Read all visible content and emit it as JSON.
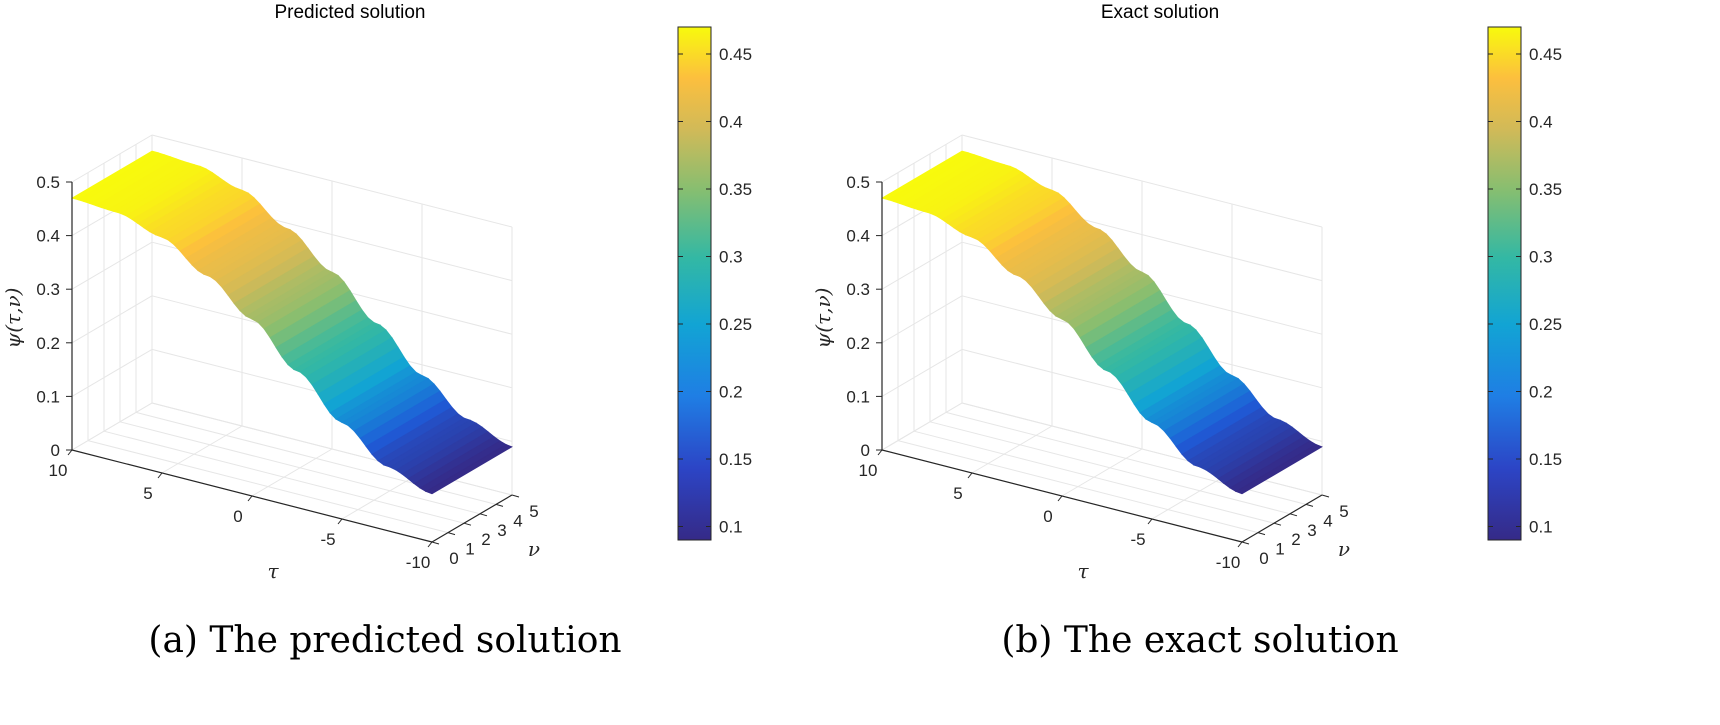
{
  "chart_data": [
    {
      "type": "surface",
      "title": "Predicted solution",
      "caption": "(a) The predicted solution",
      "xlabel": "τ",
      "ylabel": "ν",
      "zlabel": "ψ(τ,ν)",
      "xlim": [
        -10,
        10
      ],
      "ylim": [
        0,
        5
      ],
      "zlim": [
        0,
        0.5
      ],
      "x_ticks": [
        "10",
        "5",
        "0",
        "-5",
        "-10"
      ],
      "y_ticks": [
        "0",
        "1",
        "2",
        "3",
        "4",
        "5"
      ],
      "z_ticks": [
        "0",
        "0.1",
        "0.2",
        "0.3",
        "0.4",
        "0.5"
      ],
      "colorbar": {
        "range": [
          0.09,
          0.47
        ],
        "ticks": [
          "0.1",
          "0.15",
          "0.2",
          "0.25",
          "0.3",
          "0.35",
          "0.4",
          "0.45"
        ],
        "colormap": "parula"
      },
      "grid": true,
      "surface": {
        "description_of_shape": "values vary along τ only",
        "tau": [
          10,
          7.5,
          5,
          2.5,
          0,
          -2.5,
          -5,
          -7.5,
          -10
        ],
        "psi": [
          0.47,
          0.465,
          0.44,
          0.39,
          0.33,
          0.255,
          0.18,
          0.12,
          0.09
        ]
      }
    },
    {
      "type": "surface",
      "title": "Exact solution",
      "caption": "(b) The exact solution",
      "xlabel": "τ",
      "ylabel": "ν",
      "zlabel": "ψ(τ,ν)",
      "xlim": [
        -10,
        10
      ],
      "ylim": [
        0,
        5
      ],
      "zlim": [
        0,
        0.5
      ],
      "x_ticks": [
        "10",
        "5",
        "0",
        "-5",
        "-10"
      ],
      "y_ticks": [
        "0",
        "1",
        "2",
        "3",
        "4",
        "5"
      ],
      "z_ticks": [
        "0",
        "0.1",
        "0.2",
        "0.3",
        "0.4",
        "0.5"
      ],
      "colorbar": {
        "range": [
          0.09,
          0.47
        ],
        "ticks": [
          "0.1",
          "0.15",
          "0.2",
          "0.25",
          "0.3",
          "0.35",
          "0.4",
          "0.45"
        ],
        "colormap": "parula"
      },
      "grid": true,
      "surface": {
        "description_of_shape": "values vary along τ only",
        "tau": [
          10,
          7.5,
          5,
          2.5,
          0,
          -2.5,
          -5,
          -7.5,
          -10
        ],
        "psi": [
          0.47,
          0.465,
          0.44,
          0.39,
          0.33,
          0.255,
          0.18,
          0.12,
          0.09
        ]
      }
    }
  ],
  "colors": {
    "axis": "#262626",
    "grid": "#e6e6e6",
    "parula": [
      "#352a87",
      "#1f5bd8",
      "#12a4d4",
      "#33b8a4",
      "#85be71",
      "#d1ba58",
      "#fcbf3e",
      "#f8fa0d"
    ]
  }
}
